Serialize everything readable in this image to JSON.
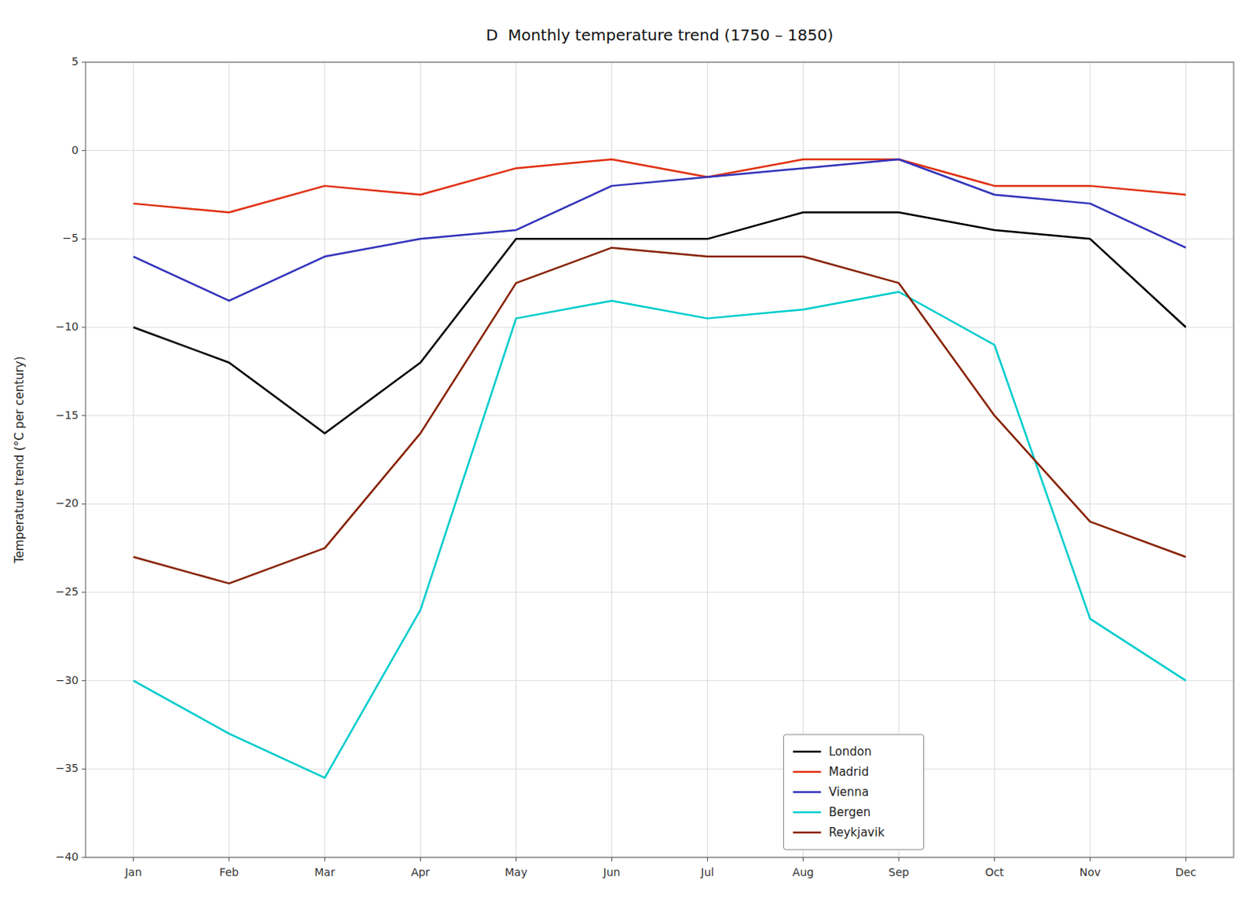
{
  "chart_data": {
    "type": "line",
    "title": "D  Monthly temperature trend (1750 – 1850)",
    "y_label": "Temperature trend (°C per century)",
    "categories": [
      "Jan",
      "Feb",
      "Mar",
      "Apr",
      "May",
      "Jun",
      "Jul",
      "Aug",
      "Sep",
      "Oct",
      "Nov",
      "Dec"
    ],
    "series": [
      {
        "name": "London",
        "color": "#000000",
        "values": [
          -10.0,
          -12.0,
          -16.0,
          -12.0,
          -5.0,
          -5.0,
          -5.0,
          -3.5,
          -3.5,
          -4.5,
          -5.0,
          -10.0
        ]
      },
      {
        "name": "Madrid",
        "color": "#e03010",
        "values": [
          -3.0,
          -3.5,
          -2.0,
          -2.5,
          -1.0,
          -0.5,
          -1.5,
          -0.5,
          -0.5,
          -2.0,
          -2.0,
          -2.5
        ]
      },
      {
        "name": "Vienna",
        "color": "#3333bb",
        "values": [
          -6.0,
          -8.5,
          -6.0,
          -5.0,
          -4.5,
          -2.0,
          -1.5,
          -1.0,
          -0.5,
          -2.5,
          -3.0,
          -5.5
        ]
      },
      {
        "name": "Bergen",
        "color": "#00cccc",
        "values": [
          -30.0,
          -33.0,
          -35.5,
          -26.0,
          -9.5,
          -8.5,
          -9.5,
          -9.0,
          -8.0,
          -11.0,
          -26.5,
          -30.0
        ]
      },
      {
        "name": "Reykjavik",
        "color": "#882200",
        "values": [
          -23.0,
          -24.5,
          -22.5,
          -16.0,
          -7.5,
          -5.5,
          -6.0,
          -6.0,
          -7.5,
          -15.0,
          -21.0,
          -23.0
        ]
      }
    ],
    "ylim": [
      -40,
      5
    ],
    "yticks": [
      {
        "value": -40,
        "label": "−40"
      },
      {
        "value": -35,
        "label": "−35"
      },
      {
        "value": -30,
        "label": "−30"
      },
      {
        "value": -25,
        "label": "−25"
      },
      {
        "value": -20,
        "label": "−20"
      },
      {
        "value": -15,
        "label": "−15"
      },
      {
        "value": -10,
        "label": "−10"
      },
      {
        "value": -5,
        "label": "−5"
      },
      0,
      5
    ],
    "grid": true,
    "legend": "lower right"
  }
}
